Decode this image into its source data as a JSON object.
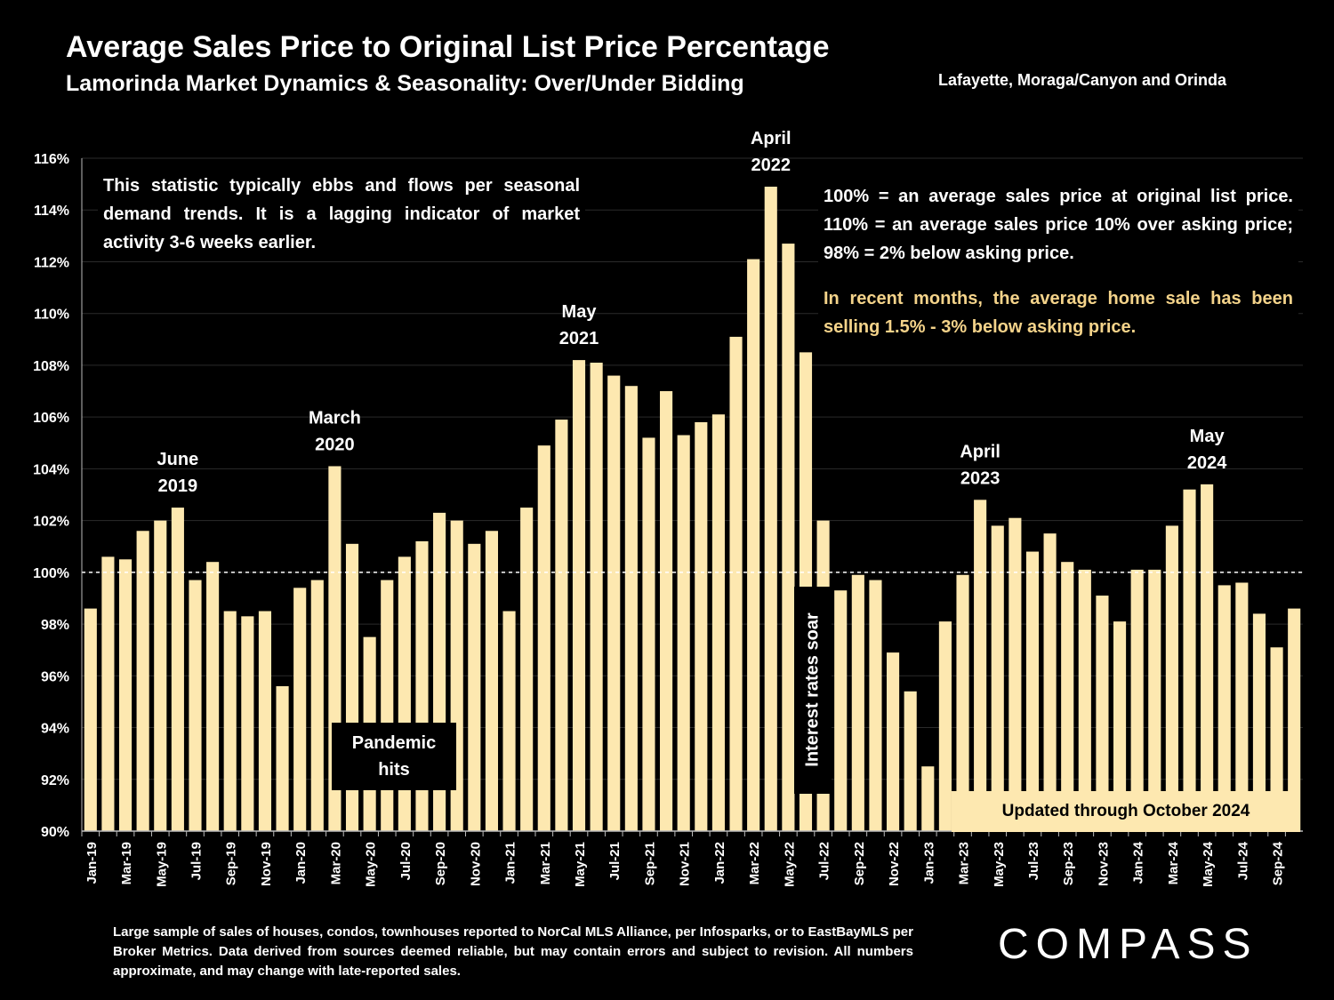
{
  "header": {
    "title": "Average Sales Price to Original List Price Percentage",
    "subtitle": "Lamorinda Market Dynamics & Seasonality: Over/Under Bidding",
    "region": "Lafayette, Moraga/Canyon and Orinda"
  },
  "notes": {
    "left": "This statistic typically ebbs and flows per seasonal demand trends. It is a lagging indicator of market activity 3-6 weeks earlier.",
    "right": "100% = an average sales price at original list price. 110% = an average sales price 10% over asking price; 98% = 2% below asking price.",
    "highlight": "In recent months, the average home sale has been selling 1.5% - 3% below asking price.",
    "pandemic": "Pandemic hits",
    "rates": "Interest rates soar",
    "updated": "Updated through October 2024"
  },
  "footer": {
    "disclaimer": "Large sample of sales of houses, condos, townhouses reported to NorCal MLS Alliance, per Infosparks, or to EastBayMLS per Broker Metrics. Data derived from sources deemed reliable, but may contain errors and subject to revision. All numbers approximate, and may change with late-reported sales.",
    "logo": "COMPASS"
  },
  "colors": {
    "bar": "#fde8b0",
    "background": "#000000",
    "highlight_text": "#f4d38a",
    "text": "#ffffff"
  },
  "chart_data": {
    "type": "bar",
    "ylim": [
      90,
      116
    ],
    "yticks": [
      90,
      92,
      94,
      96,
      98,
      100,
      102,
      104,
      106,
      108,
      110,
      112,
      114,
      116
    ],
    "y_tick_suffix": "%",
    "reference_line": 100,
    "categories": [
      "Jan-19",
      "Feb-19",
      "Mar-19",
      "Apr-19",
      "May-19",
      "Jun-19",
      "Jul-19",
      "Aug-19",
      "Sep-19",
      "Oct-19",
      "Nov-19",
      "Dec-19",
      "Jan-20",
      "Feb-20",
      "Mar-20",
      "Apr-20",
      "May-20",
      "Jun-20",
      "Jul-20",
      "Aug-20",
      "Sep-20",
      "Oct-20",
      "Nov-20",
      "Dec-20",
      "Jan-21",
      "Feb-21",
      "Mar-21",
      "Apr-21",
      "May-21",
      "Jun-21",
      "Jul-21",
      "Aug-21",
      "Sep-21",
      "Oct-21",
      "Nov-21",
      "Dec-21",
      "Jan-22",
      "Feb-22",
      "Mar-22",
      "Apr-22",
      "May-22",
      "Jun-22",
      "Jul-22",
      "Aug-22",
      "Sep-22",
      "Oct-22",
      "Nov-22",
      "Dec-22",
      "Jan-23",
      "Feb-23",
      "Mar-23",
      "Apr-23",
      "May-23",
      "Jun-23",
      "Jul-23",
      "Aug-23",
      "Sep-23",
      "Oct-23",
      "Nov-23",
      "Dec-23",
      "Jan-24",
      "Feb-24",
      "Mar-24",
      "Apr-24",
      "May-24",
      "Jun-24",
      "Jul-24",
      "Aug-24",
      "Sep-24",
      "Oct-24"
    ],
    "x_tick_labels_shown": [
      "Jan-19",
      "Mar-19",
      "May-19",
      "Jul-19",
      "Sep-19",
      "Nov-19",
      "Jan-20",
      "Mar-20",
      "May-20",
      "Jul-20",
      "Sep-20",
      "Nov-20",
      "Jan-21",
      "Mar-21",
      "May-21",
      "Jul-21",
      "Sep-21",
      "Nov-21",
      "Jan-22",
      "Mar-22",
      "May-22",
      "Jul-22",
      "Sep-22",
      "Nov-22",
      "Jan-23",
      "Mar-23",
      "May-23",
      "Jul-23",
      "Sep-23",
      "Nov-23",
      "Jan-24",
      "Mar-24",
      "May-24",
      "Jul-24",
      "Sep-24"
    ],
    "values": [
      98.6,
      100.6,
      100.5,
      101.6,
      102.0,
      102.5,
      99.7,
      100.4,
      98.5,
      98.3,
      98.5,
      95.6,
      99.4,
      99.7,
      104.1,
      101.1,
      97.5,
      99.7,
      100.6,
      101.2,
      102.3,
      102.0,
      101.1,
      101.6,
      98.5,
      102.5,
      104.9,
      105.9,
      108.2,
      108.1,
      107.6,
      107.2,
      105.2,
      107.0,
      105.3,
      105.8,
      106.1,
      109.1,
      112.1,
      114.9,
      112.7,
      108.5,
      102.0,
      99.3,
      99.9,
      99.7,
      96.9,
      95.4,
      92.5,
      98.1,
      99.9,
      102.8,
      101.8,
      102.1,
      100.8,
      101.5,
      100.4,
      100.1,
      99.1,
      98.1,
      100.1,
      100.1,
      101.8,
      103.2,
      103.4,
      99.5,
      99.6,
      98.4,
      97.1,
      98.6
    ],
    "annotations": [
      {
        "category": "Jun-19",
        "lines": [
          "June",
          "2019"
        ]
      },
      {
        "category": "Mar-20",
        "lines": [
          "March",
          "2020"
        ]
      },
      {
        "category": "May-21",
        "lines": [
          "May",
          "2021"
        ]
      },
      {
        "category": "Apr-22",
        "lines": [
          "April",
          "2022"
        ]
      },
      {
        "category": "Apr-23",
        "lines": [
          "April",
          "2023"
        ]
      },
      {
        "category": "May-24",
        "lines": [
          "May",
          "2024"
        ]
      }
    ]
  }
}
